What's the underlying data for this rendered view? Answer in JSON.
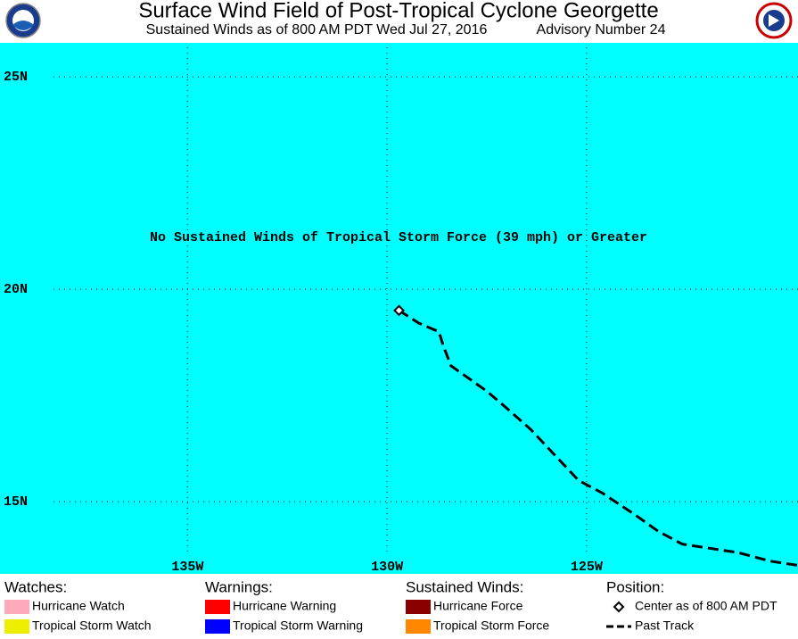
{
  "header": {
    "title": "Surface Wind Field of Post-Tropical Cyclone Georgette",
    "subtitle": "Sustained Winds as of 800 AM PDT Wed Jul 27, 2016",
    "advisory": "Advisory Number 24"
  },
  "map": {
    "background": "#00ffff",
    "lon_lim": [
      139.7,
      119.7
    ],
    "lat_lim": [
      13.3,
      25.8
    ],
    "lat_ticks": [
      {
        "value": 25,
        "label": "25N"
      },
      {
        "value": 20,
        "label": "20N"
      },
      {
        "value": 15,
        "label": "15N"
      }
    ],
    "lon_ticks": [
      {
        "value": 135,
        "label": "135W"
      },
      {
        "value": 130,
        "label": "130W"
      },
      {
        "value": 125,
        "label": "125W"
      }
    ],
    "message": "No Sustained Winds of Tropical Storm Force (39 mph) or Greater",
    "center": {
      "lat": 19.5,
      "lon": 129.7
    },
    "track": {
      "lat": [
        19.5,
        19.2,
        19.0,
        18.7,
        18.2,
        18.0,
        17.6,
        17.2,
        16.7,
        16.1,
        15.5,
        15.2,
        14.7,
        14.3,
        14.0,
        13.9,
        13.8,
        13.6,
        13.5
      ],
      "lon": [
        129.7,
        129.2,
        128.7,
        128.6,
        128.4,
        128.1,
        127.5,
        127.0,
        126.4,
        125.8,
        125.2,
        124.6,
        123.8,
        123.2,
        122.6,
        121.9,
        121.2,
        120.4,
        119.7
      ]
    }
  },
  "legend": [
    {
      "title": "Watches:",
      "items": [
        {
          "label": "Hurricane Watch",
          "color": "#ffaabb"
        },
        {
          "label": "Tropical Storm Watch",
          "color": "#eeee00"
        }
      ]
    },
    {
      "title": "Warnings:",
      "items": [
        {
          "label": "Hurricane Warning",
          "color": "#ff0000"
        },
        {
          "label": "Tropical Storm Warning",
          "color": "#0000ff"
        }
      ]
    },
    {
      "title": "Sustained Winds:",
      "items": [
        {
          "label": "Hurricane Force",
          "color": "#880000"
        },
        {
          "label": "Tropical Storm Force",
          "color": "#ff8800"
        }
      ]
    },
    {
      "title": "Position:",
      "items": [
        {
          "label": "Center as of 800 AM PDT",
          "symbol": "diamond"
        },
        {
          "label": "Past Track",
          "symbol": "dash"
        }
      ]
    }
  ]
}
